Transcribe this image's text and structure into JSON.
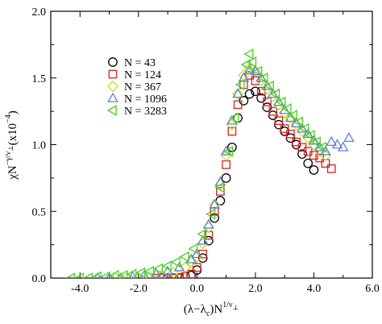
{
  "chart_data": {
    "type": "scatter",
    "title": "",
    "xlabel": "(λ−λc)N^(1/ν⊥)",
    "ylabel": "χN^(−γ/ν⊥)(x10^−4)",
    "xlim": [
      -5.0,
      6.0
    ],
    "ylim": [
      0.0,
      2.0
    ],
    "xticks": [
      -4.0,
      -2.0,
      0.0,
      2.0,
      4.0,
      6.0
    ],
    "yticks": [
      0.0,
      0.5,
      1.0,
      1.5,
      2.0
    ],
    "xtick_labels": [
      "-4.0",
      "-2.0",
      "0.0",
      "2.0",
      "4.0",
      "6.0"
    ],
    "ytick_labels": [
      "0.0",
      "0.5",
      "1.0",
      "1.5",
      "2.0"
    ],
    "grid": false,
    "legend_position": "top-left",
    "series": [
      {
        "name": "N = 43",
        "marker": "circle",
        "color": "#000000",
        "points": [
          [
            -1.2,
            0.0
          ],
          [
            -1.0,
            0.0
          ],
          [
            -0.8,
            0.0
          ],
          [
            -0.6,
            0.0
          ],
          [
            -0.4,
            0.01
          ],
          [
            -0.2,
            0.02
          ],
          [
            0.0,
            0.06
          ],
          [
            0.2,
            0.15
          ],
          [
            0.4,
            0.28
          ],
          [
            0.6,
            0.45
          ],
          [
            0.8,
            0.58
          ],
          [
            1.0,
            0.75
          ],
          [
            1.2,
            0.98
          ],
          [
            1.4,
            1.2
          ],
          [
            1.6,
            1.33
          ],
          [
            1.8,
            1.38
          ],
          [
            2.0,
            1.4
          ],
          [
            2.2,
            1.35
          ],
          [
            2.4,
            1.28
          ],
          [
            2.6,
            1.22
          ],
          [
            2.8,
            1.15
          ],
          [
            3.0,
            1.1
          ],
          [
            3.2,
            1.05
          ],
          [
            3.4,
            1.0
          ],
          [
            3.6,
            0.93
          ],
          [
            3.8,
            0.86
          ],
          [
            4.0,
            0.81
          ]
        ]
      },
      {
        "name": "N = 124",
        "marker": "square",
        "color": "#d42020",
        "points": [
          [
            -1.4,
            0.0
          ],
          [
            -1.2,
            0.0
          ],
          [
            -1.0,
            0.0
          ],
          [
            -0.8,
            0.0
          ],
          [
            -0.6,
            0.0
          ],
          [
            -0.4,
            0.01
          ],
          [
            -0.2,
            0.03
          ],
          [
            0.0,
            0.08
          ],
          [
            0.2,
            0.18
          ],
          [
            0.4,
            0.32
          ],
          [
            0.6,
            0.5
          ],
          [
            0.8,
            0.65
          ],
          [
            1.0,
            0.85
          ],
          [
            1.2,
            1.1
          ],
          [
            1.4,
            1.3
          ],
          [
            1.6,
            1.45
          ],
          [
            1.8,
            1.52
          ],
          [
            2.0,
            1.48
          ],
          [
            2.2,
            1.4
          ],
          [
            2.4,
            1.32
          ],
          [
            2.6,
            1.25
          ],
          [
            2.8,
            1.18
          ],
          [
            3.0,
            1.12
          ],
          [
            3.2,
            1.08
          ],
          [
            3.4,
            1.02
          ],
          [
            3.6,
            0.98
          ],
          [
            3.8,
            0.95
          ],
          [
            4.0,
            0.92
          ],
          [
            4.2,
            0.9
          ],
          [
            4.4,
            0.86
          ],
          [
            4.6,
            0.82
          ]
        ]
      },
      {
        "name": "N = 367",
        "marker": "diamond",
        "color": "#c8e01e",
        "points": [
          [
            -2.8,
            0.0
          ],
          [
            -2.4,
            0.0
          ],
          [
            -2.0,
            0.0
          ],
          [
            -1.6,
            0.01
          ],
          [
            -1.2,
            0.02
          ],
          [
            -0.8,
            0.04
          ],
          [
            -0.4,
            0.08
          ],
          [
            -0.2,
            0.12
          ],
          [
            0.0,
            0.16
          ],
          [
            0.2,
            0.26
          ],
          [
            0.4,
            0.38
          ],
          [
            0.6,
            0.55
          ],
          [
            0.8,
            0.7
          ],
          [
            1.0,
            0.92
          ],
          [
            1.2,
            1.15
          ],
          [
            1.4,
            1.38
          ],
          [
            1.6,
            1.52
          ],
          [
            1.8,
            1.57
          ],
          [
            2.0,
            1.55
          ],
          [
            2.2,
            1.48
          ],
          [
            2.4,
            1.42
          ],
          [
            2.6,
            1.36
          ],
          [
            2.8,
            1.3
          ],
          [
            3.0,
            1.24
          ],
          [
            3.2,
            1.2
          ],
          [
            3.4,
            1.15
          ],
          [
            3.6,
            1.1
          ],
          [
            3.8,
            1.05
          ],
          [
            4.0,
            1.0
          ],
          [
            4.2,
            0.95
          ],
          [
            4.4,
            0.92
          ]
        ]
      },
      {
        "name": "N = 1096",
        "marker": "triangle-up",
        "color": "#5f7fe0",
        "points": [
          [
            -3.4,
            0.0
          ],
          [
            -3.0,
            0.0
          ],
          [
            -2.6,
            0.0
          ],
          [
            -2.2,
            0.01
          ],
          [
            -1.8,
            0.02
          ],
          [
            -1.4,
            0.03
          ],
          [
            -1.0,
            0.05
          ],
          [
            -0.6,
            0.08
          ],
          [
            -0.2,
            0.14
          ],
          [
            0.0,
            0.18
          ],
          [
            0.2,
            0.28
          ],
          [
            0.4,
            0.4
          ],
          [
            0.6,
            0.55
          ],
          [
            0.8,
            0.72
          ],
          [
            1.0,
            0.95
          ],
          [
            1.2,
            1.18
          ],
          [
            1.4,
            1.38
          ],
          [
            1.6,
            1.5
          ],
          [
            1.8,
            1.56
          ],
          [
            2.0,
            1.55
          ],
          [
            2.2,
            1.5
          ],
          [
            2.4,
            1.44
          ],
          [
            2.6,
            1.38
          ],
          [
            2.8,
            1.32
          ],
          [
            3.0,
            1.26
          ],
          [
            3.2,
            1.2
          ],
          [
            3.4,
            1.16
          ],
          [
            3.6,
            1.12
          ],
          [
            3.8,
            1.08
          ],
          [
            4.0,
            1.03
          ],
          [
            4.2,
            0.98
          ],
          [
            4.4,
            0.95
          ],
          [
            4.6,
            1.02
          ],
          [
            4.8,
            1.0
          ],
          [
            5.0,
            0.98
          ],
          [
            5.2,
            1.05
          ]
        ]
      },
      {
        "name": "N = 3283",
        "marker": "triangle-left",
        "color": "#44d21e",
        "points": [
          [
            -4.3,
            0.0
          ],
          [
            -4.0,
            0.0
          ],
          [
            -3.7,
            0.0
          ],
          [
            -3.4,
            0.01
          ],
          [
            -3.1,
            0.01
          ],
          [
            -2.8,
            0.02
          ],
          [
            -2.5,
            0.02
          ],
          [
            -2.2,
            0.03
          ],
          [
            -1.9,
            0.04
          ],
          [
            -1.6,
            0.05
          ],
          [
            -1.3,
            0.07
          ],
          [
            -1.0,
            0.09
          ],
          [
            -0.7,
            0.12
          ],
          [
            -0.4,
            0.16
          ],
          [
            -0.1,
            0.22
          ],
          [
            0.2,
            0.33
          ],
          [
            0.5,
            0.48
          ],
          [
            0.8,
            0.68
          ],
          [
            1.1,
            0.95
          ],
          [
            1.3,
            1.2
          ],
          [
            1.5,
            1.45
          ],
          [
            1.7,
            1.6
          ],
          [
            1.8,
            1.68
          ],
          [
            1.9,
            1.62
          ],
          [
            2.1,
            1.55
          ],
          [
            2.3,
            1.5
          ],
          [
            2.5,
            1.44
          ],
          [
            2.7,
            1.38
          ],
          [
            2.9,
            1.32
          ],
          [
            3.1,
            1.27
          ],
          [
            3.3,
            1.22
          ],
          [
            3.5,
            1.17
          ],
          [
            3.7,
            1.12
          ],
          [
            3.9,
            1.07
          ],
          [
            4.1,
            1.02
          ],
          [
            4.3,
            0.98
          ]
        ]
      }
    ]
  }
}
